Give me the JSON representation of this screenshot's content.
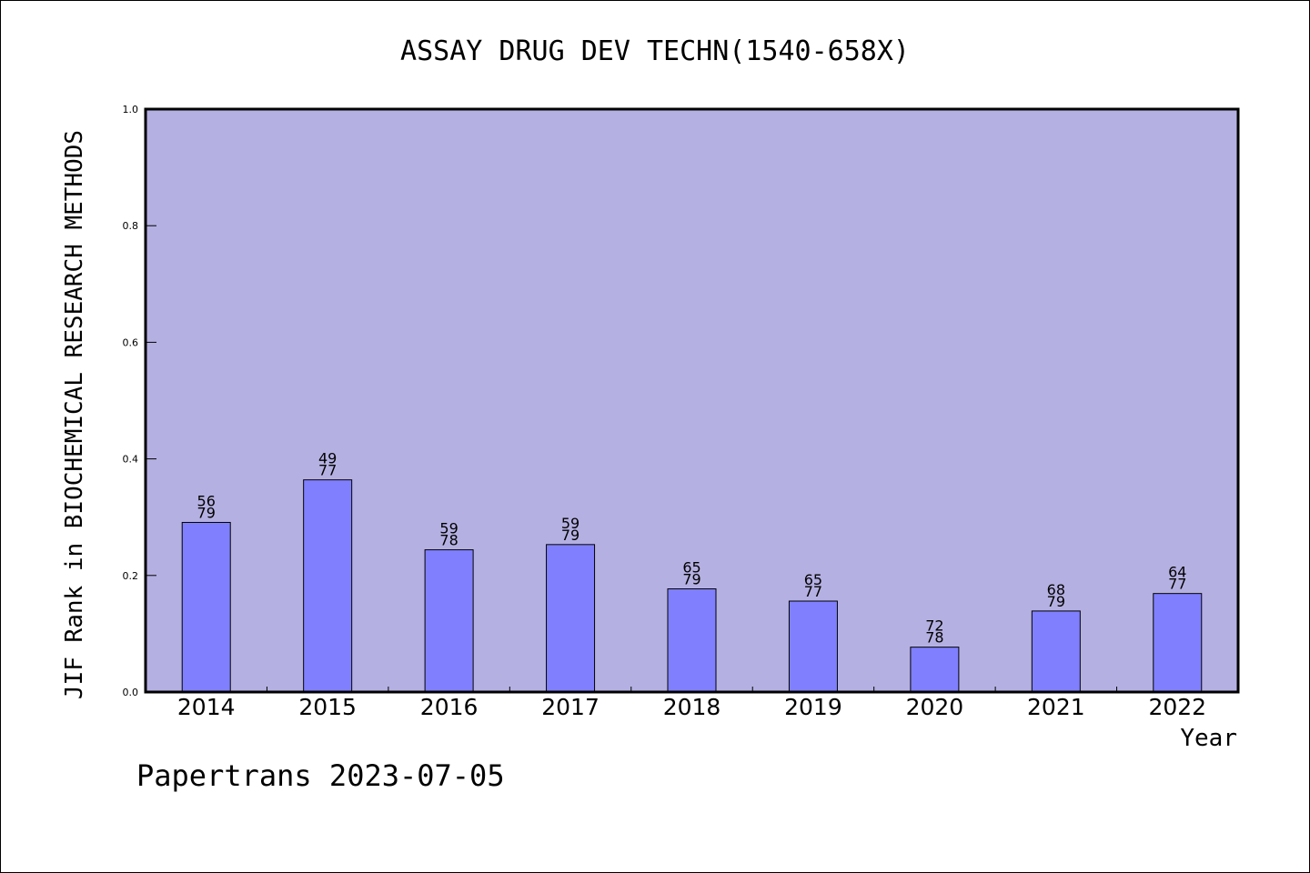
{
  "chart_data": {
    "type": "bar",
    "title": "ASSAY DRUG DEV TECHN(1540-658X)",
    "xlabel": "Year",
    "ylabel": "JIF Rank in BIOCHEMICAL RESEARCH METHODS",
    "categories": [
      "2014",
      "2015",
      "2016",
      "2017",
      "2018",
      "2019",
      "2020",
      "2021",
      "2022"
    ],
    "values": [
      0.291,
      0.364,
      0.244,
      0.253,
      0.177,
      0.156,
      0.077,
      0.139,
      0.169
    ],
    "rank_labels": [
      "56",
      "49",
      "59",
      "59",
      "65",
      "65",
      "72",
      "68",
      "64"
    ],
    "total_labels": [
      "79",
      "77",
      "78",
      "79",
      "79",
      "77",
      "78",
      "79",
      "77"
    ],
    "ylim": [
      0,
      1.0
    ],
    "yticks": [
      "0.0",
      "0.2",
      "0.4",
      "0.6",
      "0.8",
      "1.0"
    ],
    "grid": false,
    "legend": "none",
    "colors": {
      "plot_background": "#b5b0e2",
      "bar_fill": "#8080ff",
      "bar_edge": "#000000",
      "axis": "#000000"
    }
  },
  "footer": {
    "credit": "Papertrans 2023-07-05"
  }
}
